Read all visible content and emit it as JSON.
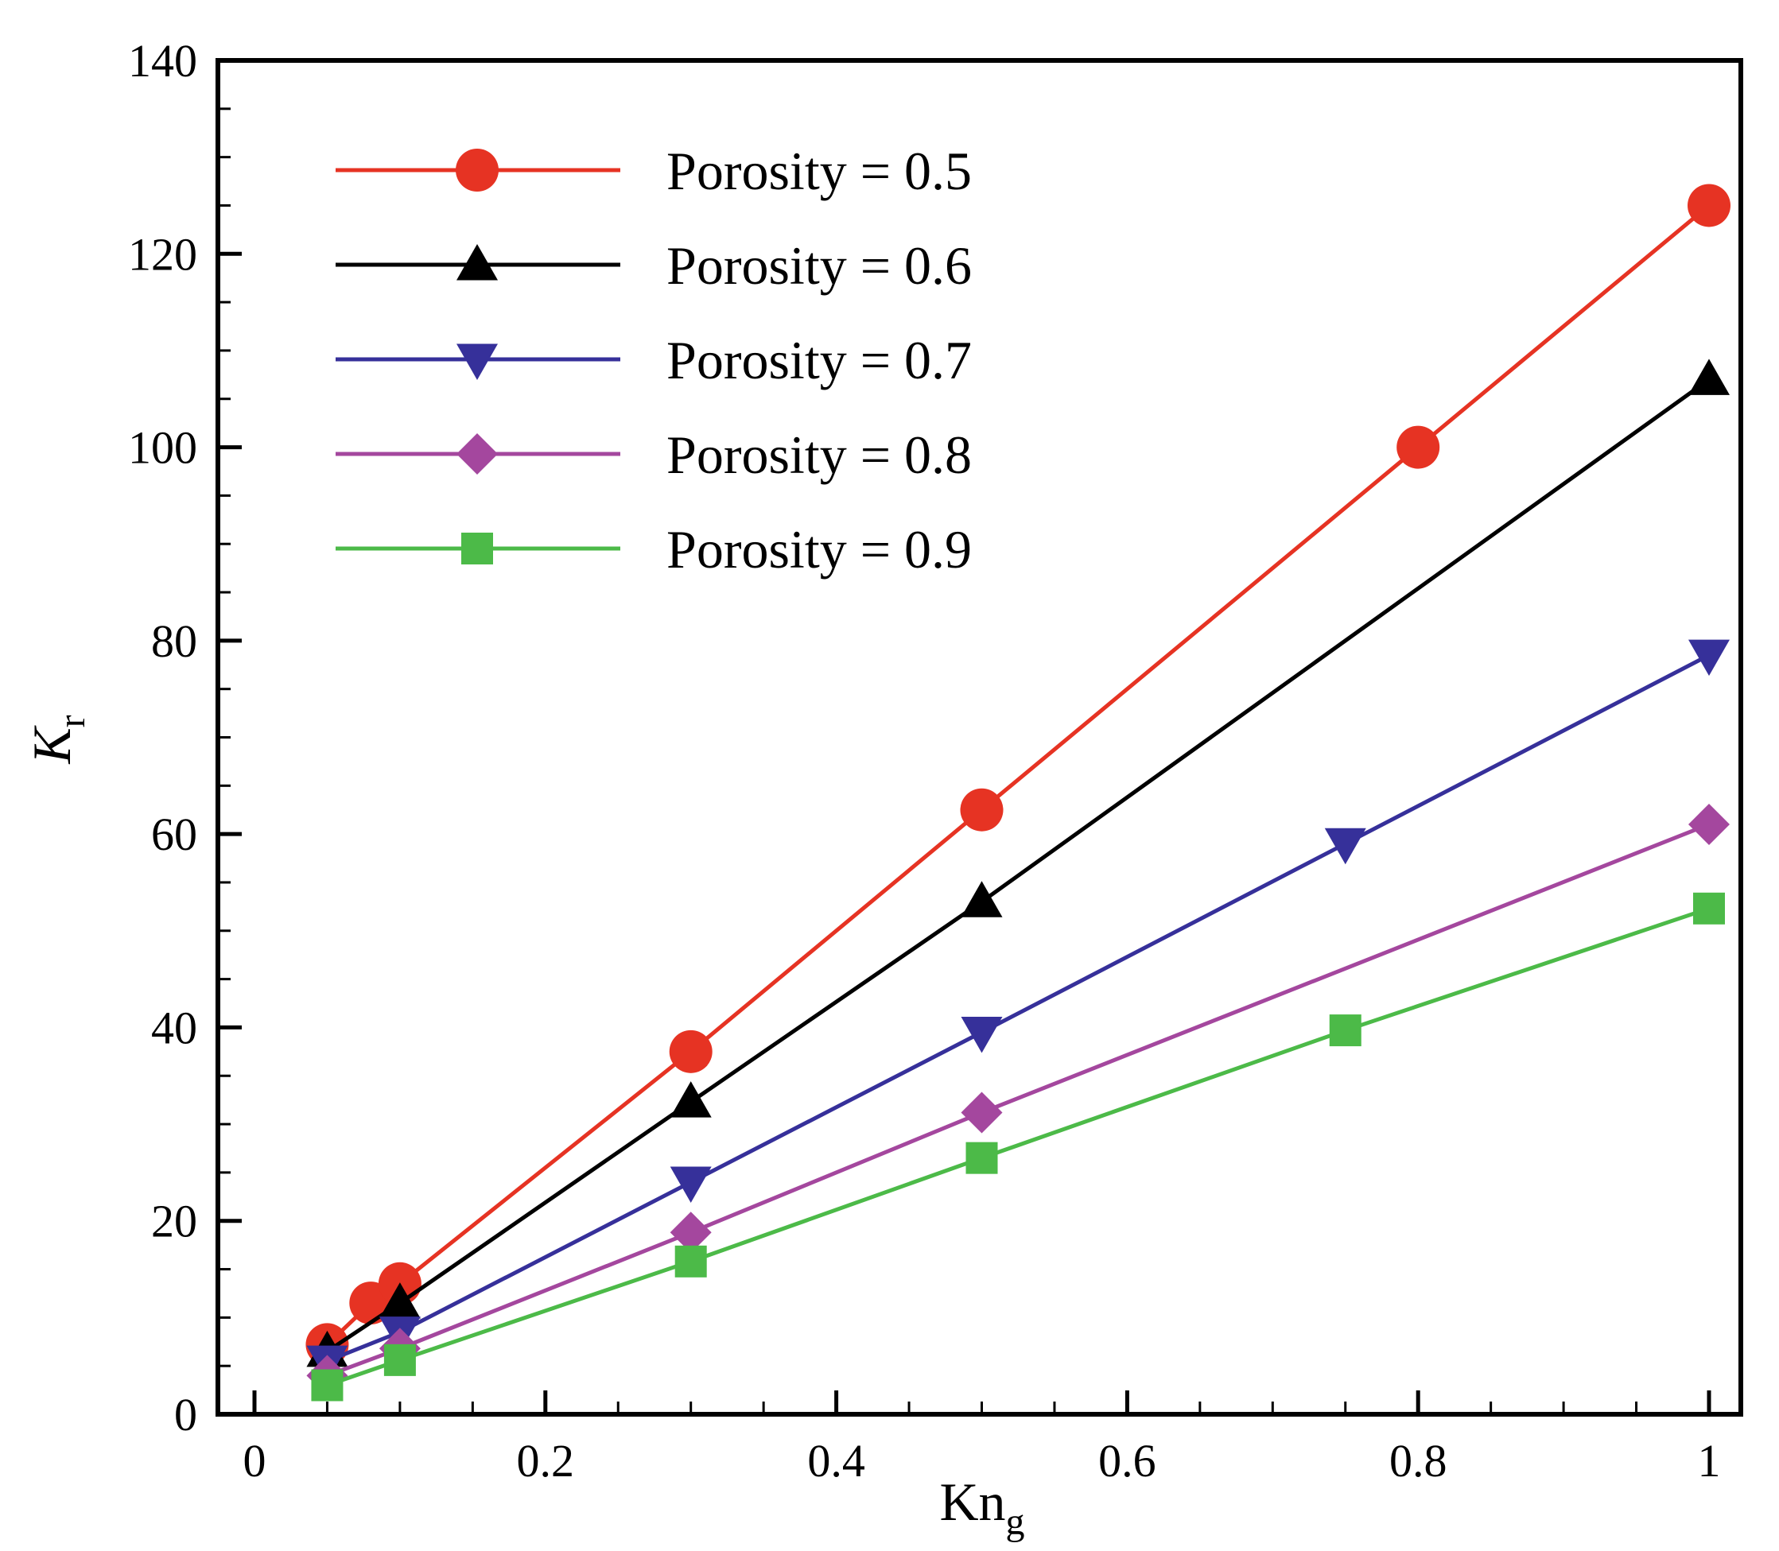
{
  "chart_data": {
    "type": "line",
    "title": "",
    "xlabel": "Kn",
    "xlabel_sub": "g",
    "ylabel": "K",
    "ylabel_sub": "r",
    "xlim": [
      -0.025,
      1.02
    ],
    "ylim": [
      0,
      140
    ],
    "xticks": [
      "0",
      "0.2",
      "0.4",
      "0.6",
      "0.8",
      "1"
    ],
    "xtick_values": [
      0,
      0.2,
      0.4,
      0.6,
      0.8,
      1
    ],
    "yticks": [
      "0",
      "20",
      "40",
      "60",
      "80",
      "100",
      "120",
      "140"
    ],
    "ytick_values": [
      0,
      20,
      40,
      60,
      80,
      100,
      120,
      140
    ],
    "grid": false,
    "legend_position": "top-left",
    "series": [
      {
        "name": "Porosity = 0.5",
        "color": "#e63323",
        "marker": "circle",
        "x": [
          0.05,
          0.08,
          0.1,
          0.3,
          0.5,
          0.8,
          1.0
        ],
        "y": [
          7.2,
          11.5,
          13.5,
          37.5,
          62.5,
          100,
          125
        ]
      },
      {
        "name": "Porosity = 0.6",
        "color": "#000000",
        "marker": "triangle-up",
        "x": [
          0.05,
          0.1,
          0.3,
          0.5,
          1.0
        ],
        "y": [
          6.5,
          11.5,
          32.3,
          53,
          107
        ]
      },
      {
        "name": "Porosity = 0.7",
        "color": "#36309a",
        "marker": "triangle-down",
        "x": [
          0.05,
          0.1,
          0.3,
          0.5,
          0.75,
          1.0
        ],
        "y": [
          5.5,
          8.5,
          24,
          39.5,
          59,
          78.5
        ]
      },
      {
        "name": "Porosity = 0.8",
        "color": "#a4479e",
        "marker": "diamond",
        "x": [
          0.05,
          0.1,
          0.3,
          0.5,
          1.0
        ],
        "y": [
          4,
          6.8,
          18.8,
          31.2,
          61
        ]
      },
      {
        "name": "Porosity = 0.9",
        "color": "#4cba48",
        "marker": "square",
        "x": [
          0.05,
          0.1,
          0.3,
          0.5,
          0.75,
          1.0
        ],
        "y": [
          3,
          5.6,
          15.8,
          26.5,
          39.7,
          52.3
        ]
      }
    ]
  }
}
